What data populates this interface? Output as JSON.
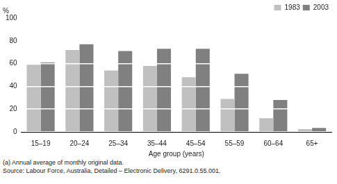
{
  "chart_data": {
    "type": "bar",
    "categories": [
      "15–19",
      "20–24",
      "25–34",
      "35–44",
      "45–54",
      "55–59",
      "60–64",
      "65+"
    ],
    "series": [
      {
        "name": "1983",
        "color": "#c0c0c0",
        "values": [
          59,
          72,
          54,
          58,
          48,
          29,
          12,
          2.5
        ]
      },
      {
        "name": "2003",
        "color": "#808080",
        "values": [
          61,
          77,
          71,
          73,
          73,
          51,
          28,
          3.5
        ]
      }
    ],
    "y_label": "%",
    "x_label": "Age group (years)",
    "ylim": [
      0,
      100
    ],
    "yticks": [
      0,
      20,
      40,
      60,
      80,
      100
    ],
    "grid": true,
    "legend": "top right",
    "annotations": [
      "(a) Annual average of monthly original data.",
      "Source: Labour Force, Australia, Detailed – Electronic Delivery, 6291.0.55.001."
    ]
  }
}
